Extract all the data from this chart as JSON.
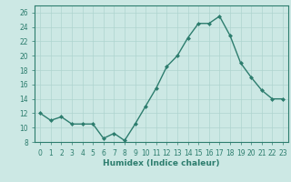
{
  "x": [
    0,
    1,
    2,
    3,
    4,
    5,
    6,
    7,
    8,
    9,
    10,
    11,
    12,
    13,
    14,
    15,
    16,
    17,
    18,
    19,
    20,
    21,
    22,
    23
  ],
  "y": [
    12,
    11,
    11.5,
    10.5,
    10.5,
    10.5,
    8.5,
    9.2,
    8.2,
    10.5,
    13,
    15.5,
    18.5,
    20,
    22.5,
    24.5,
    24.5,
    25.5,
    22.8,
    19,
    17,
    15.2,
    14,
    14
  ],
  "line_color": "#2d7d6e",
  "marker": "D",
  "marker_size": 2.0,
  "linewidth": 1.0,
  "xlabel": "Humidex (Indice chaleur)",
  "ylim": [
    8,
    27
  ],
  "xlim": [
    -0.5,
    23.5
  ],
  "yticks": [
    8,
    10,
    12,
    14,
    16,
    18,
    20,
    22,
    24,
    26
  ],
  "xticks": [
    0,
    1,
    2,
    3,
    4,
    5,
    6,
    7,
    8,
    9,
    10,
    11,
    12,
    13,
    14,
    15,
    16,
    17,
    18,
    19,
    20,
    21,
    22,
    23
  ],
  "bg_color": "#cce8e4",
  "grid_color": "#aed4cf",
  "tick_label_fontsize": 5.5,
  "xlabel_fontsize": 6.5
}
